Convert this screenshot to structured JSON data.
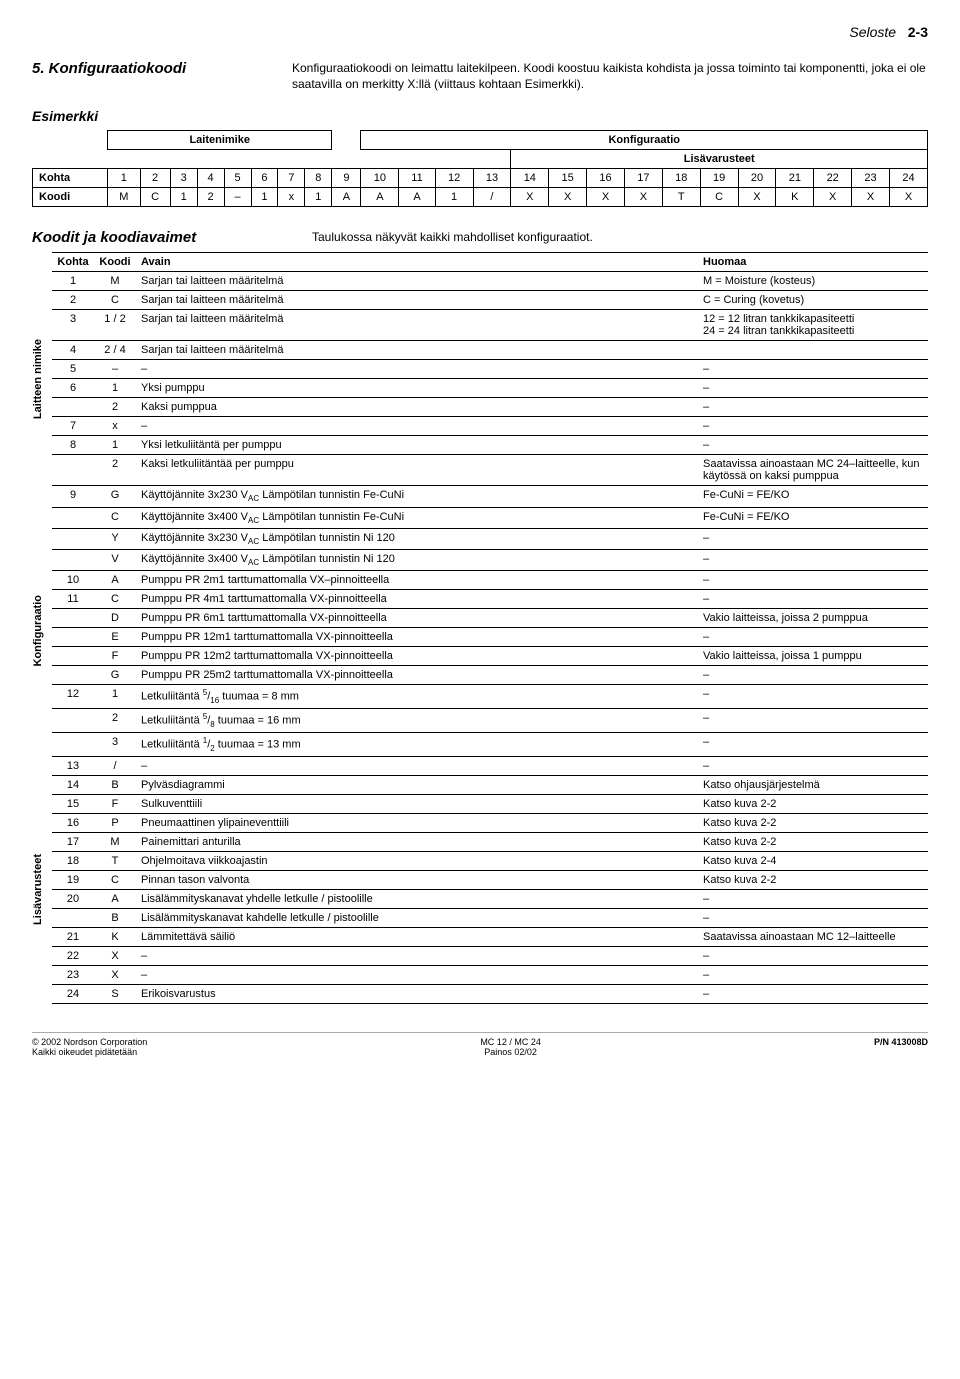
{
  "header": {
    "title": "Seloste",
    "page": "2-3"
  },
  "sec5": {
    "heading": "5. Konfiguraatiokoodi",
    "body": "Konfiguraatiokoodi on leimattu laitekilpeen. Koodi koostuu kaikista kohdista ja jossa toiminto tai komponentti, joka ei ole saatavilla on merkitty X:llä (viittaus kohtaan Esimerkki)."
  },
  "esimerkki": {
    "title": "Esimerkki",
    "laitenimike": "Laitenimike",
    "konfiguraatio": "Konfiguraatio",
    "lisavarusteet": "Lisävarusteet",
    "row_kohta_label": "Kohta",
    "row_kohta": [
      "1",
      "2",
      "3",
      "4",
      "5",
      "6",
      "7",
      "8",
      "9",
      "10",
      "11",
      "12",
      "13",
      "14",
      "15",
      "16",
      "17",
      "18",
      "19",
      "20",
      "21",
      "22",
      "23",
      "24"
    ],
    "row_koodi_label": "Koodi",
    "row_koodi": [
      "M",
      "C",
      "1",
      "2",
      "–",
      "1",
      "x",
      "1",
      "A",
      "A",
      "A",
      "1",
      "/",
      "X",
      "X",
      "X",
      "X",
      "T",
      "C",
      "X",
      "K",
      "X",
      "X",
      "X"
    ]
  },
  "koodit": {
    "title": "Koodit ja koodiavaimet",
    "subtitle": "Taulukossa näkyvät kaikki mahdolliset konfiguraatiot.",
    "head_kohta": "Kohta",
    "head_koodi": "Koodi",
    "head_avain": "Avain",
    "head_huomaa": "Huomaa",
    "vlabel1": "Laitteen nimike",
    "vlabel2": "Konfiguraatio",
    "vlabel3": "Lisävarusteet"
  },
  "rows": [
    {
      "k": "1",
      "c": "M",
      "a": "Sarjan tai laitteen määritelmä",
      "h": "M = Moisture (kosteus)"
    },
    {
      "k": "2",
      "c": "C",
      "a": "Sarjan tai laitteen määritelmä",
      "h": "C = Curing (kovetus)"
    },
    {
      "k": "3",
      "c": "1 / 2",
      "a": "Sarjan tai laitteen määritelmä",
      "h": "12 = 12 litran tankkikapasiteetti\n24 = 24 litran tankkikapasiteetti"
    },
    {
      "k": "4",
      "c": "2 / 4",
      "a": "Sarjan tai laitteen määritelmä",
      "h": ""
    },
    {
      "k": "5",
      "c": "–",
      "a": "–",
      "h": "–"
    },
    {
      "k": "6",
      "c": "1",
      "a": "Yksi pumppu",
      "h": "–"
    },
    {
      "k": "",
      "c": "2",
      "a": "Kaksi pumppua",
      "h": "–"
    },
    {
      "k": "7",
      "c": "x",
      "a": "–",
      "h": "–"
    },
    {
      "k": "8",
      "c": "1",
      "a": "Yksi letkuliitäntä per pumppu",
      "h": "–"
    },
    {
      "k": "",
      "c": "2",
      "a": "Kaksi letkuliitäntää per pumppu",
      "h": "Saatavissa ainoastaan MC 24–laitteelle, kun käytössä on kaksi pumppua"
    },
    {
      "k": "9",
      "c": "G",
      "a": "Käyttöjännite 3x230 V_AC     Lämpötilan tunnistin Fe-CuNi",
      "h": "Fe-CuNi = FE/KO"
    },
    {
      "k": "",
      "c": "C",
      "a": "Käyttöjännite 3x400 V_AC     Lämpötilan tunnistin Fe-CuNi",
      "h": "Fe-CuNi = FE/KO"
    },
    {
      "k": "",
      "c": "Y",
      "a": "Käyttöjännite 3x230 V_AC     Lämpötilan tunnistin Ni 120",
      "h": "–"
    },
    {
      "k": "",
      "c": "V",
      "a": "Käyttöjännite 3x400 V_AC     Lämpötilan tunnistin Ni 120",
      "h": "–"
    },
    {
      "k": "10",
      "c": "A",
      "a": "Pumppu PR 2m1    tarttumattomalla VX–pinnoitteella",
      "h": "–"
    },
    {
      "k": "11",
      "c": "C",
      "a": "Pumppu PR 4m1    tarttumattomalla VX-pinnoitteella",
      "h": "–"
    },
    {
      "k": "",
      "c": "D",
      "a": "Pumppu PR 6m1    tarttumattomalla VX-pinnoitteella",
      "h": "Vakio laitteissa, joissa 2 pumppua"
    },
    {
      "k": "",
      "c": "E",
      "a": "Pumppu PR 12m1  tarttumattomalla VX-pinnoitteella",
      "h": "–"
    },
    {
      "k": "",
      "c": "F",
      "a": "Pumppu PR 12m2  tarttumattomalla VX-pinnoitteella",
      "h": "Vakio laitteissa, joissa 1 pumppu"
    },
    {
      "k": "",
      "c": "G",
      "a": "Pumppu PR 25m2  tarttumattomalla VX-pinnoitteella",
      "h": "–"
    },
    {
      "k": "12",
      "c": "1",
      "a": "Letkuliitäntä 5/16 tuumaa   = 8 mm",
      "h": "–"
    },
    {
      "k": "",
      "c": "2",
      "a": "Letkuliitäntä 5/8 tuumaa    = 16 mm",
      "h": "–"
    },
    {
      "k": "",
      "c": "3",
      "a": "Letkuliitäntä 1/2 tuumaa    = 13 mm",
      "h": "–"
    },
    {
      "k": "13",
      "c": "/",
      "a": "–",
      "h": "–"
    },
    {
      "k": "14",
      "c": "B",
      "a": "Pylväsdiagrammi",
      "h": "Katso ohjausjärjestelmä"
    },
    {
      "k": "15",
      "c": "F",
      "a": "Sulkuventtiili",
      "h": "Katso kuva 2-2"
    },
    {
      "k": "16",
      "c": "P",
      "a": "Pneumaattinen ylipaineventtiili",
      "h": "Katso kuva 2-2"
    },
    {
      "k": "17",
      "c": "M",
      "a": "Painemittari anturilla",
      "h": "Katso kuva 2-2"
    },
    {
      "k": "18",
      "c": "T",
      "a": "Ohjelmoitava viikkoajastin",
      "h": "Katso kuva 2-4"
    },
    {
      "k": "19",
      "c": "C",
      "a": "Pinnan tason valvonta",
      "h": "Katso kuva 2-2"
    },
    {
      "k": "20",
      "c": "A",
      "a": "Lisälämmityskanavat yhdelle letkulle / pistoolille",
      "h": "–"
    },
    {
      "k": "",
      "c": "B",
      "a": "Lisälämmityskanavat kahdelle letkulle / pistoolille",
      "h": "–"
    },
    {
      "k": "21",
      "c": "K",
      "a": "Lämmitettävä säiliö",
      "h": "Saatavissa ainoastaan MC 12–laitteelle"
    },
    {
      "k": "22",
      "c": "X",
      "a": "–",
      "h": "–"
    },
    {
      "k": "23",
      "c": "X",
      "a": "–",
      "h": "–"
    },
    {
      "k": "24",
      "c": "S",
      "a": "Erikoisvarustus",
      "h": "–"
    }
  ],
  "footer": {
    "left1": "© 2002 Nordson Corporation",
    "left2": "Kaikki oikeudet pidätetään",
    "mid1": "MC 12 / MC 24",
    "mid2": "Painos 02/02",
    "right": "P/N 413008D"
  }
}
